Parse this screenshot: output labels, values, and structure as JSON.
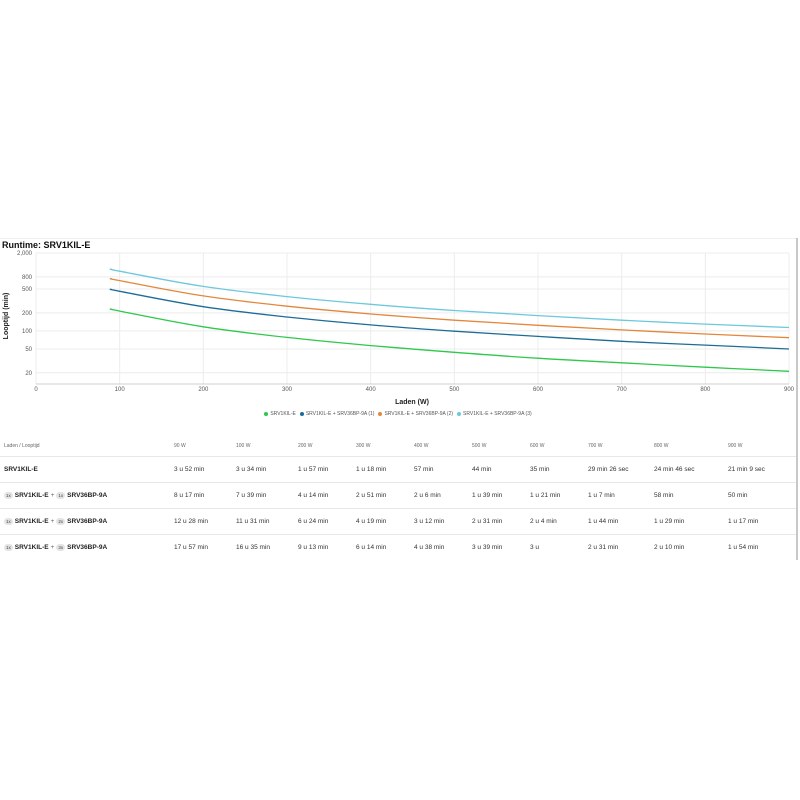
{
  "title": "Runtime: SRV1KIL-E",
  "chart_data": {
    "type": "line",
    "xlabel": "Laden (W)",
    "ylabel": "Looptijd (min)",
    "xlim": [
      0,
      900
    ],
    "ylim": [
      13,
      2000
    ],
    "yscale": "log",
    "x_ticks": [
      0,
      100,
      200,
      300,
      400,
      500,
      600,
      700,
      800,
      900
    ],
    "x_tick_labels": [
      "0",
      "100",
      "200",
      "300",
      "400",
      "500",
      "600",
      "700",
      "800",
      "900"
    ],
    "y_ticks": [
      20,
      50,
      100,
      200,
      500,
      800,
      2000
    ],
    "y_tick_labels": [
      "20",
      "50",
      "100",
      "200",
      "500",
      "800",
      "2,000"
    ],
    "grid": true,
    "legend_position": "bottom-center",
    "x": [
      90,
      100,
      200,
      300,
      400,
      500,
      600,
      700,
      800,
      900
    ],
    "series": [
      {
        "name": "SRV1KIL-E",
        "color": "#2ec84a",
        "values": [
          232,
          214,
          117,
          78,
          57,
          44,
          35,
          29.4,
          24.8,
          21.2
        ]
      },
      {
        "name": "SRV1KIL-E + SRV36BP-9A (1)",
        "color": "#1d6c96",
        "values": [
          497,
          459,
          254,
          171,
          126,
          99,
          81,
          67,
          58,
          50
        ]
      },
      {
        "name": "SRV1KIL-E + SRV36BP-9A (2)",
        "color": "#e3873a",
        "values": [
          748,
          691,
          384,
          259,
          192,
          151,
          124,
          104,
          89,
          77
        ]
      },
      {
        "name": "SRV1KIL-E + SRV36BP-9A (3)",
        "color": "#6cc9dc",
        "values": [
          1077,
          995,
          553,
          374,
          278,
          219,
          180,
          151,
          130,
          114
        ]
      }
    ]
  },
  "table": {
    "header": [
      "Laden / Looptijd",
      "90 W",
      "100 W",
      "200 W",
      "300 W",
      "400 W",
      "500 W",
      "600 W",
      "700 W",
      "800 W",
      "900 W"
    ],
    "rows": [
      {
        "base": "SRV1KIL-E",
        "badge1": "",
        "plus": "",
        "badge2": "",
        "ext": "",
        "cells": [
          "3 u 52 min",
          "3 u 34 min",
          "1 u 57 min",
          "1 u 18 min",
          "57 min",
          "44 min",
          "35 min",
          "29 min 26 sec",
          "24 min 46 sec",
          "21 min 9 sec"
        ]
      },
      {
        "base": "SRV1KIL-E",
        "badge1": "1x",
        "plus": "+",
        "badge2": "1x",
        "ext": "SRV36BP-9A",
        "cells": [
          "8 u 17 min",
          "7 u 39 min",
          "4 u 14 min",
          "2 u 51 min",
          "2 u 6 min",
          "1 u 39 min",
          "1 u 21 min",
          "1 u 7 min",
          "58 min",
          "50 min"
        ]
      },
      {
        "base": "SRV1KIL-E",
        "badge1": "1x",
        "plus": "+",
        "badge2": "2x",
        "ext": "SRV36BP-9A",
        "cells": [
          "12 u 28 min",
          "11 u 31 min",
          "6 u 24 min",
          "4 u 19 min",
          "3 u 12 min",
          "2 u 31 min",
          "2 u 4 min",
          "1 u 44 min",
          "1 u 29 min",
          "1 u 17 min"
        ]
      },
      {
        "base": "SRV1KIL-E",
        "badge1": "1x",
        "plus": "+",
        "badge2": "3x",
        "ext": "SRV36BP-9A",
        "cells": [
          "17 u 57 min",
          "16 u 35 min",
          "9 u 13 min",
          "6 u 14 min",
          "4 u 38 min",
          "3 u 39 min",
          "3 u",
          "2 u 31 min",
          "2 u 10 min",
          "1 u 54 min"
        ]
      }
    ]
  }
}
